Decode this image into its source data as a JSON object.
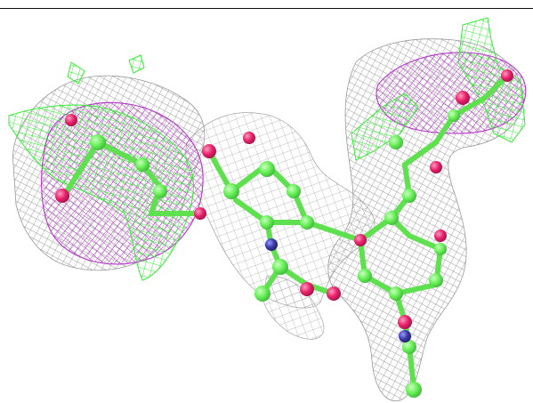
{
  "scene": {
    "background_color": "#ffffff",
    "border_color": "#111111",
    "colors": {
      "mesh_gray": "#9a9a9a",
      "mesh_magenta": "#b436c8",
      "mesh_green": "#33ee33",
      "carbon": "#66ee55",
      "carbon_dark": "#3fc53a",
      "oxygen": "#e8206a",
      "nitrogen": "#3a3aa8"
    },
    "elements": [
      "carbon",
      "oxygen",
      "nitrogen"
    ]
  }
}
